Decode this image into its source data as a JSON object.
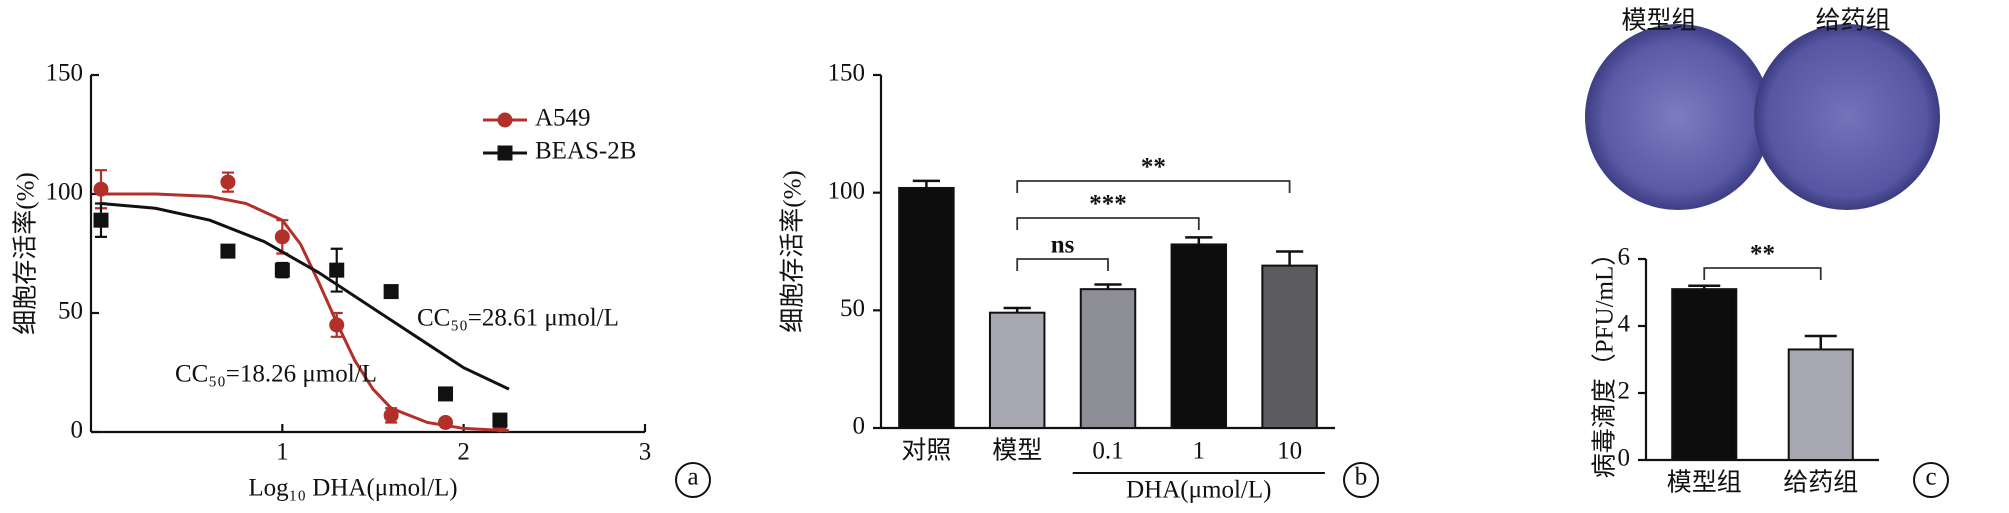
{
  "chart_data": [
    {
      "type": "scatter",
      "panel": "a",
      "ylabel": "细胞存活率(%)",
      "xlabel": "Log₁₀ DHA(μmol/L)",
      "xlim": [
        0,
        3
      ],
      "xticks": [
        1,
        2,
        3
      ],
      "ylim": [
        0,
        150
      ],
      "yticks": [
        0,
        50,
        100,
        150
      ],
      "series": [
        {
          "name": "A549",
          "color": "#b22f2a",
          "marker": "circle",
          "x": [
            0,
            0.7,
            1,
            1.3,
            1.6,
            1.9,
            2.2
          ],
          "values": [
            102,
            105,
            82,
            45,
            7,
            4,
            3
          ],
          "errors": [
            8,
            4,
            7,
            5,
            3,
            1,
            1
          ],
          "curve": {
            "x": [
              0,
              0.3,
              0.6,
              0.8,
              1.0,
              1.1,
              1.2,
              1.3,
              1.4,
              1.5,
              1.6,
              1.8,
              2.0,
              2.25
            ],
            "y": [
              100,
              100,
              99,
              96,
              89,
              79,
              63,
              46,
              30,
              18,
              10,
              4,
              1.5,
              0.5
            ]
          }
        },
        {
          "name": "BEAS-2B",
          "color": "#111111",
          "marker": "square",
          "x": [
            0,
            0.7,
            1,
            1.3,
            1.6,
            1.9,
            2.2
          ],
          "values": [
            89,
            76,
            68,
            68,
            59,
            16,
            5
          ],
          "errors": [
            7,
            0,
            3,
            9,
            0,
            0,
            0
          ],
          "curve": {
            "x": [
              0,
              0.3,
              0.6,
              0.9,
              1.2,
              1.5,
              1.8,
              2.0,
              2.25
            ],
            "y": [
              96,
              94,
              89,
              80,
              67,
              52,
              37,
              27,
              18
            ]
          }
        }
      ],
      "annotations": [
        "CC₅₀=28.61 μmol/L",
        "CC₅₀=18.26 μmol/L"
      ]
    },
    {
      "type": "bar",
      "panel": "b",
      "ylabel": "细胞存活率(%)",
      "categories": [
        "对照",
        "模型",
        "0.1",
        "1",
        "10"
      ],
      "values": [
        102,
        49,
        59,
        78,
        69
      ],
      "errors": [
        3,
        2,
        2,
        3,
        6
      ],
      "colors": [
        "#0d0d0d",
        "#a7a7b1",
        "#8d8d95",
        "#0d0d0d",
        "#5b5b60"
      ],
      "ylim": [
        0,
        150
      ],
      "yticks": [
        0,
        50,
        100,
        150
      ],
      "group": {
        "label": "DHA(μmol/L)",
        "from": 2,
        "to": 4
      },
      "significance": [
        {
          "from": 1,
          "to": 2,
          "label": "ns"
        },
        {
          "from": 1,
          "to": 3,
          "label": "***"
        },
        {
          "from": 1,
          "to": 4,
          "label": "**"
        }
      ]
    },
    {
      "type": "bar",
      "panel": "c",
      "image_labels": [
        "模型组",
        "给药组"
      ],
      "ylabel": "病毒滴度（PFU/mL）",
      "categories": [
        "模型组",
        "给药组"
      ],
      "values": [
        5.1,
        3.3
      ],
      "errors": [
        0.1,
        0.4
      ],
      "colors": [
        "#0d0d0d",
        "#a7a7b1"
      ],
      "ylim": [
        0,
        6
      ],
      "yticks": [
        0,
        2,
        4,
        6
      ],
      "significance": [
        {
          "from": 0,
          "to": 1,
          "label": "**"
        }
      ]
    }
  ]
}
